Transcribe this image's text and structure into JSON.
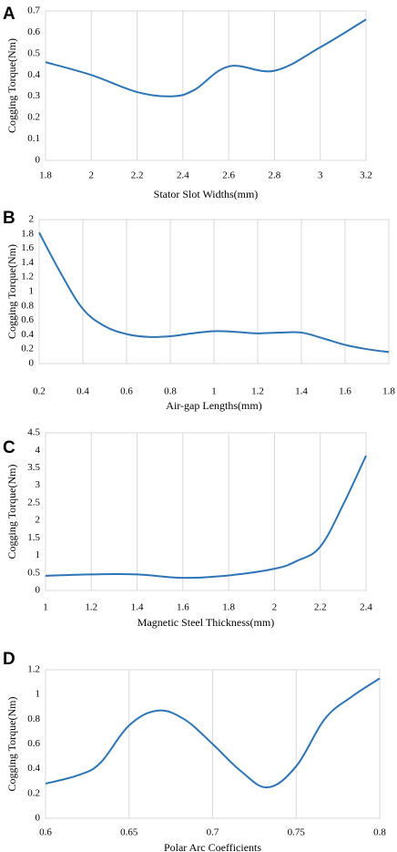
{
  "chart_data": [
    {
      "panel": "A",
      "type": "line",
      "xlabel": "Stator Slot Widths(mm)",
      "ylabel": "Cogging Torque(Nm)",
      "xlim": [
        1.8,
        3.2
      ],
      "ylim": [
        0,
        0.7
      ],
      "xticks": [
        1.8,
        2,
        2.2,
        2.4,
        2.6,
        2.8,
        3,
        3.2
      ],
      "yticks": [
        0,
        0.1,
        0.2,
        0.3,
        0.4,
        0.5,
        0.6,
        0.7
      ],
      "xtick_labels": [
        "1.8",
        "2",
        "2.2",
        "2.4",
        "2.6",
        "2.8",
        "3",
        "3.2"
      ],
      "ytick_labels": [
        "0",
        "0.1",
        "0.2",
        "0.3",
        "0.4",
        "0.5",
        "0.6",
        "0.7"
      ],
      "grid": "vertical",
      "series": [
        {
          "x": [
            1.8,
            2.0,
            2.2,
            2.35,
            2.45,
            2.6,
            2.8,
            3.0,
            3.2
          ],
          "y": [
            0.46,
            0.4,
            0.32,
            0.3,
            0.33,
            0.44,
            0.42,
            0.53,
            0.66
          ]
        }
      ]
    },
    {
      "panel": "B",
      "type": "line",
      "xlabel": "Air-gap Lengths(mm)",
      "ylabel": "Cogging Torque(Nm)",
      "xlim": [
        0.2,
        1.8
      ],
      "ylim": [
        0,
        2
      ],
      "xticks": [
        0.2,
        0.4,
        0.6,
        0.8,
        1.0,
        1.2,
        1.4,
        1.6,
        1.8
      ],
      "yticks": [
        0,
        0.2,
        0.4,
        0.6,
        0.8,
        1.0,
        1.2,
        1.4,
        1.6,
        1.8,
        2.0
      ],
      "xtick_labels": [
        "0.2",
        "0.4",
        "0.6",
        "0.8",
        "1",
        "1.2",
        "1.4",
        "1.6",
        "1.8"
      ],
      "ytick_labels": [
        "0",
        "0.2",
        "0.4",
        "0.6",
        "0.8",
        "1",
        "1.2",
        "1.4",
        "1.6",
        "1.8",
        "2"
      ],
      "grid": "vertical",
      "series": [
        {
          "x": [
            0.2,
            0.3,
            0.4,
            0.5,
            0.6,
            0.7,
            0.8,
            0.9,
            1.0,
            1.1,
            1.2,
            1.3,
            1.4,
            1.5,
            1.6,
            1.7,
            1.8
          ],
          "y": [
            1.82,
            1.25,
            0.76,
            0.52,
            0.41,
            0.37,
            0.38,
            0.42,
            0.45,
            0.44,
            0.42,
            0.43,
            0.43,
            0.35,
            0.26,
            0.2,
            0.16
          ]
        }
      ]
    },
    {
      "panel": "C",
      "type": "line",
      "xlabel": "Magnetic Steel Thickness(mm)",
      "ylabel": "Cogging Torque(Nm)",
      "xlim": [
        1,
        2.4
      ],
      "ylim": [
        0,
        4.5
      ],
      "xticks": [
        1,
        1.2,
        1.4,
        1.6,
        1.8,
        2,
        2.2,
        2.4
      ],
      "yticks": [
        0,
        0.5,
        1,
        1.5,
        2,
        2.5,
        3,
        3.5,
        4,
        4.5
      ],
      "xtick_labels": [
        "1",
        "1.2",
        "1.4",
        "1.6",
        "1.8",
        "2",
        "2.2",
        "2.4"
      ],
      "ytick_labels": [
        "0",
        "0.5",
        "1",
        "1.5",
        "2",
        "2.5",
        "3",
        "3.5",
        "4",
        "4.5"
      ],
      "grid": "vertical",
      "series": [
        {
          "x": [
            1.0,
            1.2,
            1.4,
            1.6,
            1.8,
            2.0,
            2.1,
            2.2,
            2.3,
            2.4
          ],
          "y": [
            0.42,
            0.46,
            0.46,
            0.36,
            0.43,
            0.62,
            0.85,
            1.25,
            2.45,
            3.85
          ]
        }
      ]
    },
    {
      "panel": "D",
      "type": "line",
      "xlabel": "Polar Arc Coefficients",
      "ylabel": "Cogging Torque(Nm)",
      "xlim": [
        0.6,
        0.8
      ],
      "ylim": [
        0,
        1.2
      ],
      "xticks": [
        0.6,
        0.65,
        0.7,
        0.75,
        0.8
      ],
      "yticks": [
        0,
        0.2,
        0.4,
        0.6,
        0.8,
        1.0,
        1.2
      ],
      "xtick_labels": [
        "0.6",
        "0.65",
        "0.7",
        "0.75",
        "0.8"
      ],
      "ytick_labels": [
        "0",
        "0.2",
        "0.4",
        "0.6",
        "0.8",
        "1",
        "1.2"
      ],
      "grid": "vertical",
      "series": [
        {
          "x": [
            0.6,
            0.62,
            0.633,
            0.65,
            0.667,
            0.683,
            0.7,
            0.717,
            0.733,
            0.75,
            0.767,
            0.783,
            0.8
          ],
          "y": [
            0.28,
            0.35,
            0.45,
            0.75,
            0.87,
            0.8,
            0.6,
            0.38,
            0.25,
            0.42,
            0.8,
            0.98,
            1.13
          ]
        }
      ]
    }
  ]
}
